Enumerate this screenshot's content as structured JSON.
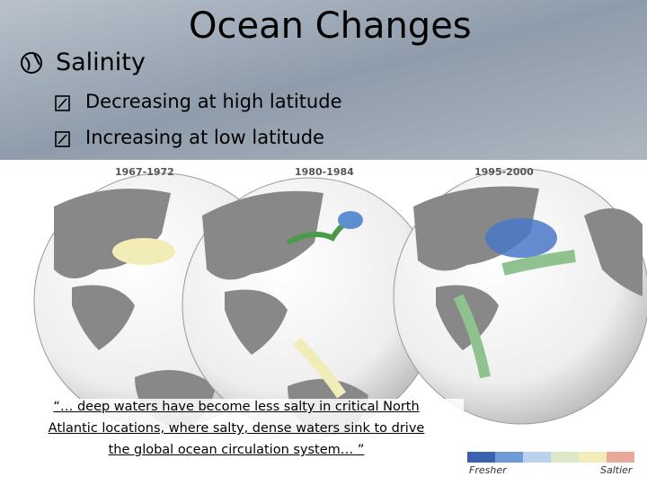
{
  "title": "Ocean Changes",
  "bullets": [
    {
      "text": "Salinity",
      "subitems": [
        "Decreasing at high latitude",
        "Increasing at low latitude"
      ]
    }
  ],
  "figure": {
    "panels": [
      "1967-1972",
      "1980-1984",
      "1995-2000"
    ],
    "quote_lines": [
      "“… deep waters have become less salty in critical North",
      "Atlantic locations, where salty, dense waters sink to drive",
      "the global ocean circulation system… ”"
    ],
    "legend": {
      "low": "Fresher",
      "high": "Saltier"
    }
  }
}
